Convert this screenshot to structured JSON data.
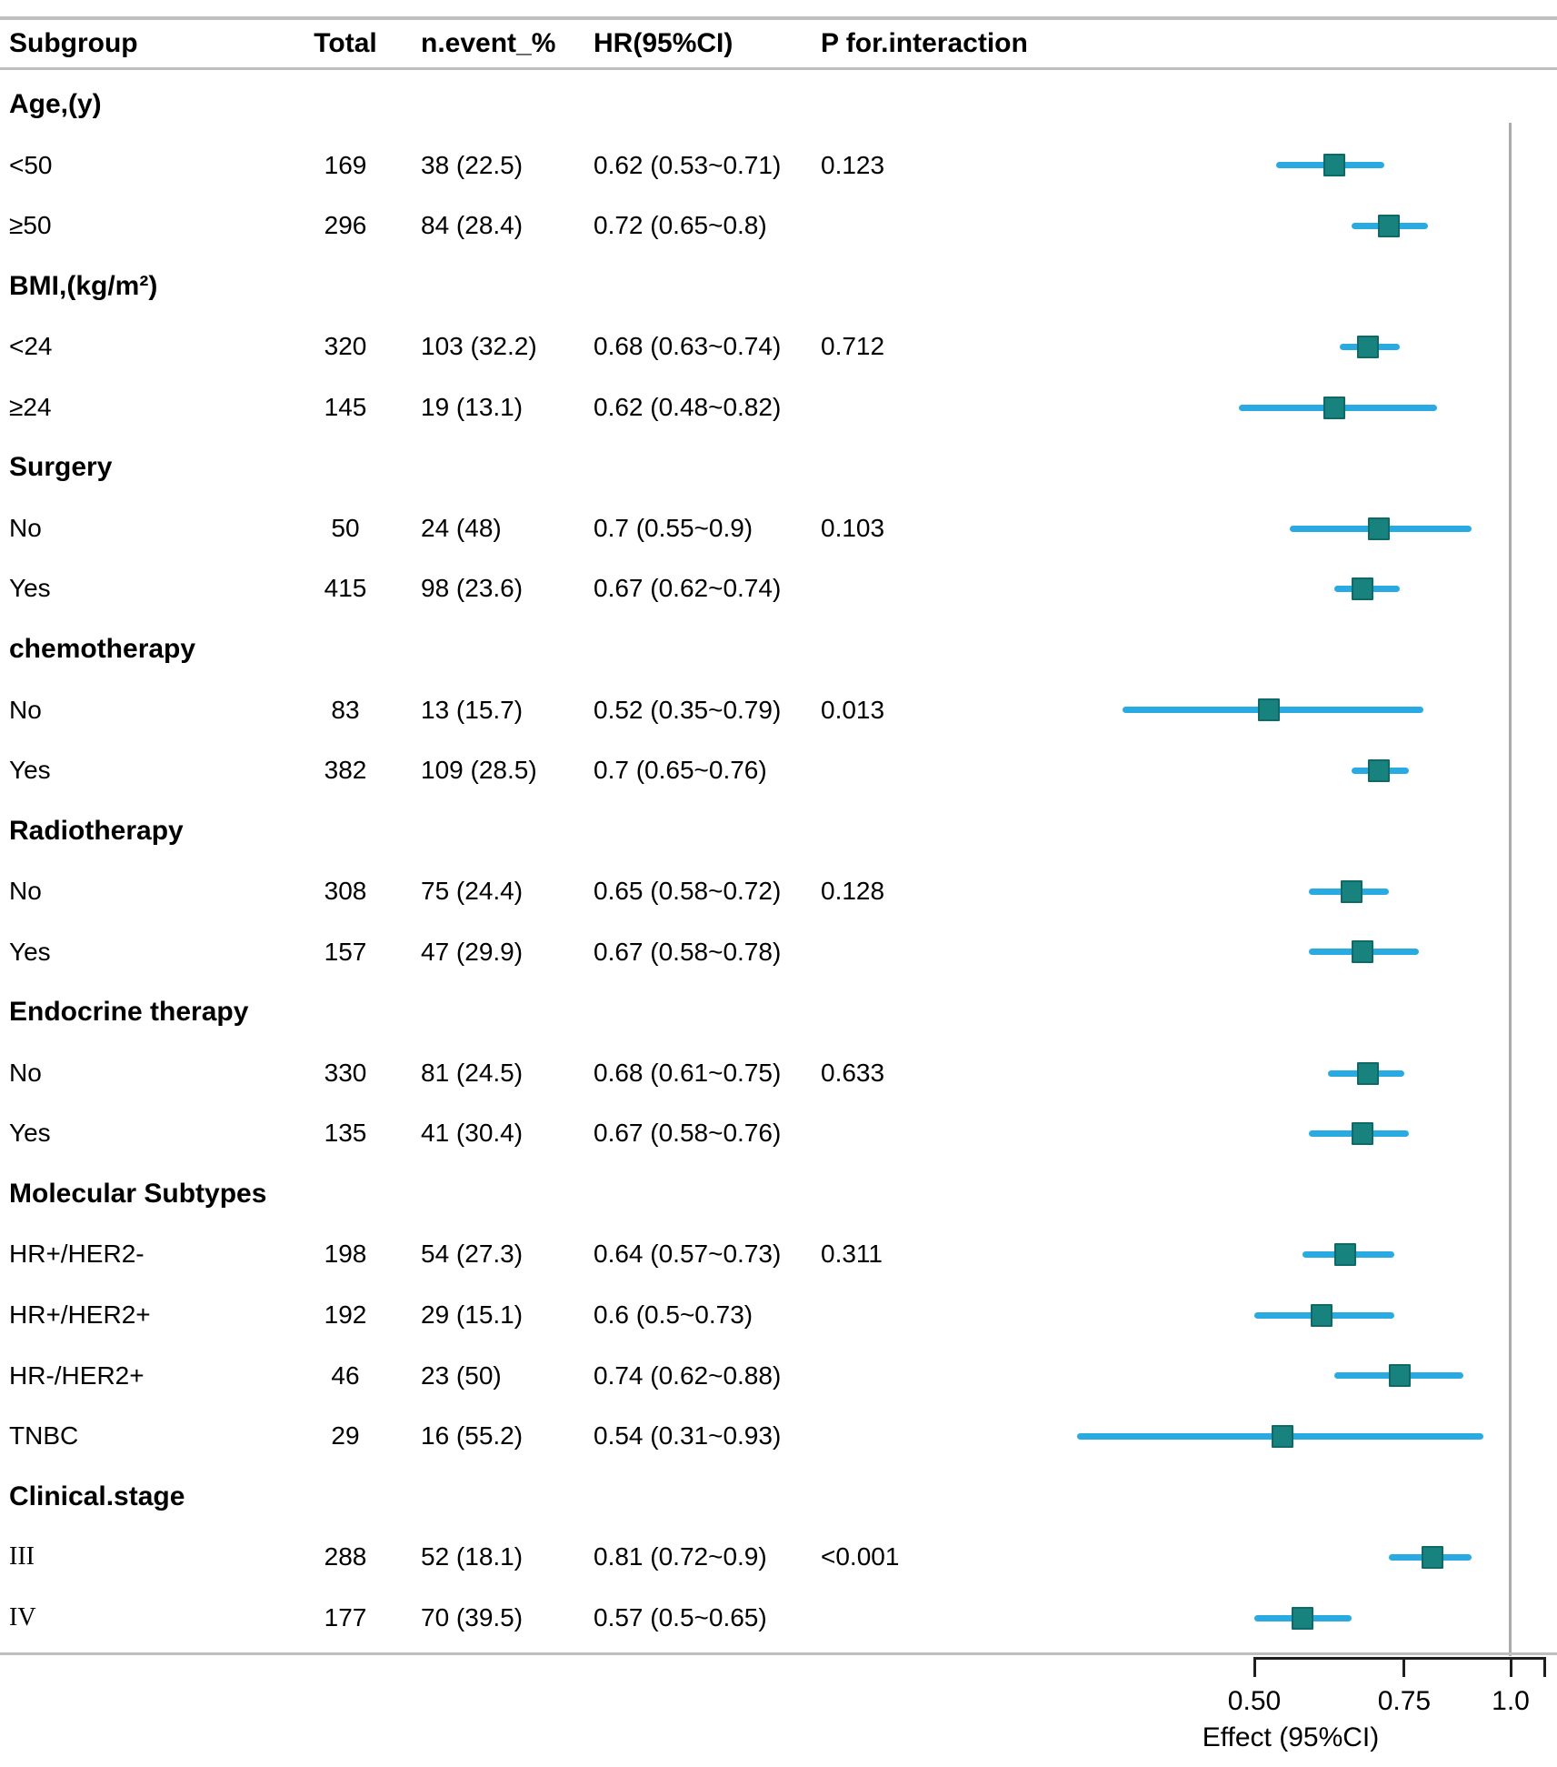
{
  "header": {
    "subgroup": "Subgroup",
    "total": "Total",
    "n_event": "n.event_%",
    "hr": "HR(95%CI)",
    "p_interaction": "P for.interaction"
  },
  "colors": {
    "ci_line": "#29abe2",
    "marker_fill": "#17827e",
    "marker_border": "#0e6a66",
    "reference_line": "#ababab",
    "grid_line": "#bfbfbf",
    "axis": "#1f1f1f",
    "text": "#000000"
  },
  "chart_data": {
    "type": "scatter",
    "subtype": "forest-plot",
    "xlabel": "Effect (95%CI)",
    "x_scale": "log",
    "x_range": [
      0.5,
      1.1
    ],
    "reference_line": 1.0,
    "x_ticks": [
      0.5,
      0.75,
      1.0
    ],
    "x_tick_labels": [
      "0.50",
      "0.75",
      "1.0"
    ],
    "rows": [
      {
        "kind": "group",
        "label": "Age,(y)"
      },
      {
        "kind": "data",
        "label": "<50",
        "total": "169",
        "events": "38 (22.5)",
        "hr_text": "0.62 (0.53~0.71)",
        "p": "0.123",
        "hr": 0.62,
        "lo": 0.53,
        "hi": 0.71
      },
      {
        "kind": "data",
        "label": "≥50",
        "total": "296",
        "events": "84 (28.4)",
        "hr_text": "0.72 (0.65~0.8)",
        "hr": 0.72,
        "lo": 0.65,
        "hi": 0.8
      },
      {
        "kind": "group",
        "label": "BMI,(kg/m²)"
      },
      {
        "kind": "data",
        "label": "<24",
        "total": "320",
        "events": "103 (32.2)",
        "hr_text": "0.68 (0.63~0.74)",
        "p": "0.712",
        "hr": 0.68,
        "lo": 0.63,
        "hi": 0.74
      },
      {
        "kind": "data",
        "label": "≥24",
        "total": "145",
        "events": "19 (13.1)",
        "hr_text": "0.62 (0.48~0.82)",
        "hr": 0.62,
        "lo": 0.48,
        "hi": 0.82
      },
      {
        "kind": "group",
        "label": "Surgery"
      },
      {
        "kind": "data",
        "label": "No",
        "total": "50",
        "events": "24 (48)",
        "hr_text": "0.7 (0.55~0.9)",
        "p": "0.103",
        "hr": 0.7,
        "lo": 0.55,
        "hi": 0.9
      },
      {
        "kind": "data",
        "label": "Yes",
        "total": "415",
        "events": "98 (23.6)",
        "hr_text": "0.67 (0.62~0.74)",
        "hr": 0.67,
        "lo": 0.62,
        "hi": 0.74
      },
      {
        "kind": "group",
        "label": "chemotherapy"
      },
      {
        "kind": "data",
        "label": "No",
        "total": "83",
        "events": "13 (15.7)",
        "hr_text": "0.52 (0.35~0.79)",
        "p": "0.013",
        "hr": 0.52,
        "lo": 0.35,
        "hi": 0.79
      },
      {
        "kind": "data",
        "label": "Yes",
        "total": "382",
        "events": "109 (28.5)",
        "hr_text": "0.7 (0.65~0.76)",
        "hr": 0.7,
        "lo": 0.65,
        "hi": 0.76
      },
      {
        "kind": "group",
        "label": "Radiotherapy"
      },
      {
        "kind": "data",
        "label": "No",
        "total": "308",
        "events": "75 (24.4)",
        "hr_text": "0.65 (0.58~0.72)",
        "p": "0.128",
        "hr": 0.65,
        "lo": 0.58,
        "hi": 0.72
      },
      {
        "kind": "data",
        "label": "Yes",
        "total": "157",
        "events": "47 (29.9)",
        "hr_text": "0.67 (0.58~0.78)",
        "hr": 0.67,
        "lo": 0.58,
        "hi": 0.78
      },
      {
        "kind": "group",
        "label": "Endocrine therapy"
      },
      {
        "kind": "data",
        "label": "No",
        "total": "330",
        "events": "81 (24.5)",
        "hr_text": "0.68 (0.61~0.75)",
        "p": "0.633",
        "hr": 0.68,
        "lo": 0.61,
        "hi": 0.75
      },
      {
        "kind": "data",
        "label": "Yes",
        "total": "135",
        "events": "41 (30.4)",
        "hr_text": "0.67 (0.58~0.76)",
        "hr": 0.67,
        "lo": 0.58,
        "hi": 0.76
      },
      {
        "kind": "group",
        "label": "Molecular Subtypes"
      },
      {
        "kind": "data",
        "label": "HR+/HER2-",
        "total": "198",
        "events": "54 (27.3)",
        "hr_text": "0.64 (0.57~0.73)",
        "p": "0.311",
        "hr": 0.64,
        "lo": 0.57,
        "hi": 0.73
      },
      {
        "kind": "data",
        "label": "HR+/HER2+",
        "total": "192",
        "events": "29 (15.1)",
        "hr_text": "0.6 (0.5~0.73)",
        "hr": 0.6,
        "lo": 0.5,
        "hi": 0.73
      },
      {
        "kind": "data",
        "label": "HR-/HER2+",
        "total": "46",
        "events": "23 (50)",
        "hr_text": "0.74 (0.62~0.88)",
        "hr": 0.74,
        "lo": 0.62,
        "hi": 0.88
      },
      {
        "kind": "data",
        "label": "TNBC",
        "total": "29",
        "events": "16 (55.2)",
        "hr_text": "0.54 (0.31~0.93)",
        "hr": 0.54,
        "lo": 0.31,
        "hi": 0.93
      },
      {
        "kind": "group",
        "label": "Clinical.stage"
      },
      {
        "kind": "data",
        "label": "III",
        "serif": true,
        "total": "288",
        "events": "52 (18.1)",
        "hr_text": "0.81 (0.72~0.9)",
        "p": "<0.001",
        "hr": 0.81,
        "lo": 0.72,
        "hi": 0.9
      },
      {
        "kind": "data",
        "label": "IV",
        "serif": true,
        "total": "177",
        "events": "70 (39.5)",
        "hr_text": "0.57 (0.5~0.65)",
        "hr": 0.57,
        "lo": 0.5,
        "hi": 0.65
      }
    ]
  }
}
